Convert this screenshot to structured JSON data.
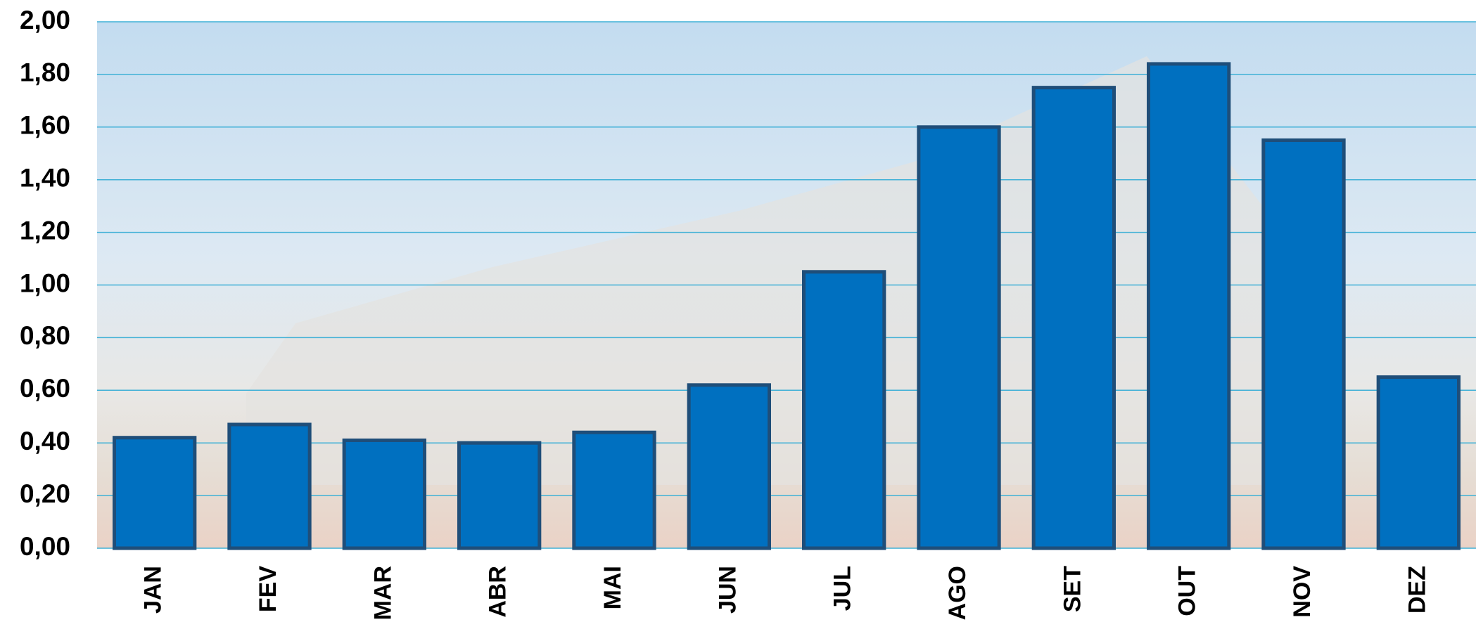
{
  "chart_data": {
    "type": "bar",
    "categories": [
      "JAN",
      "FEV",
      "MAR",
      "ABR",
      "MAI",
      "JUN",
      "JUL",
      "AGO",
      "SET",
      "OUT",
      "NOV",
      "DEZ"
    ],
    "values": [
      0.42,
      0.47,
      0.41,
      0.4,
      0.44,
      0.62,
      1.05,
      1.6,
      1.75,
      1.84,
      1.55,
      0.65
    ],
    "color": "#0070c0",
    "ylim": [
      0,
      2
    ],
    "yticks": [
      {
        "value": 0,
        "label": "0,00"
      },
      {
        "value": 0.2,
        "label": "0,20"
      },
      {
        "value": 0.4,
        "label": "0,40"
      },
      {
        "value": 0.6,
        "label": "0,60"
      },
      {
        "value": 0.8,
        "label": "0,80"
      },
      {
        "value": 1.0,
        "label": "1,00"
      },
      {
        "value": 1.2,
        "label": "1,20"
      },
      {
        "value": 1.4,
        "label": "1,40"
      },
      {
        "value": 1.6,
        "label": "1,60"
      },
      {
        "value": 1.8,
        "label": "1,80"
      },
      {
        "value": 2.0,
        "label": "2,00"
      }
    ],
    "grid": true
  }
}
